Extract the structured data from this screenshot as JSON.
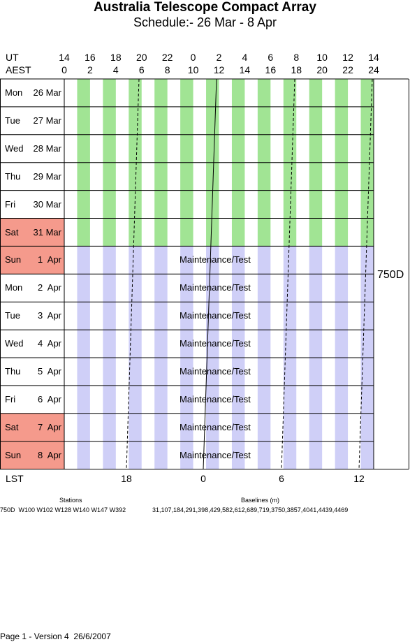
{
  "title": "Australia Telescope Compact Array",
  "subtitle": "Schedule:- 26 Mar - 8  Apr",
  "header": {
    "ut_label": "UT",
    "aest_label": "AEST",
    "ut_ticks": [
      "14",
      "16",
      "18",
      "20",
      "22",
      "0",
      "2",
      "4",
      "6",
      "8",
      "10",
      "12",
      "14"
    ],
    "aest_ticks": [
      "0",
      "2",
      "4",
      "6",
      "8",
      "10",
      "12",
      "14",
      "16",
      "18",
      "20",
      "22",
      "24"
    ]
  },
  "days": [
    {
      "weekday": "Mon",
      "date": "26 Mar",
      "weekend": false,
      "activity": ""
    },
    {
      "weekday": "Tue",
      "date": "27 Mar",
      "weekend": false,
      "activity": ""
    },
    {
      "weekday": "Wed",
      "date": "28 Mar",
      "weekend": false,
      "activity": ""
    },
    {
      "weekday": "Thu",
      "date": "29 Mar",
      "weekend": false,
      "activity": ""
    },
    {
      "weekday": "Fri",
      "date": "30 Mar",
      "weekend": false,
      "activity": ""
    },
    {
      "weekday": "Sat",
      "date": "31 Mar",
      "weekend": true,
      "activity": ""
    },
    {
      "weekday": "Sun",
      "date": "1  Apr",
      "weekend": true,
      "activity": "Maintenance/Test"
    },
    {
      "weekday": "Mon",
      "date": "2  Apr",
      "weekend": false,
      "activity": "Maintenance/Test"
    },
    {
      "weekday": "Tue",
      "date": "3  Apr",
      "weekend": false,
      "activity": "Maintenance/Test"
    },
    {
      "weekday": "Wed",
      "date": "4  Apr",
      "weekend": false,
      "activity": "Maintenance/Test"
    },
    {
      "weekday": "Thu",
      "date": "5  Apr",
      "weekend": false,
      "activity": "Maintenance/Test"
    },
    {
      "weekday": "Fri",
      "date": "6  Apr",
      "weekend": false,
      "activity": "Maintenance/Test"
    },
    {
      "weekday": "Sat",
      "date": "7  Apr",
      "weekend": true,
      "activity": "Maintenance/Test"
    },
    {
      "weekday": "Sun",
      "date": "8  Apr",
      "weekend": true,
      "activity": "Maintenance/Test"
    }
  ],
  "config_label": "750D",
  "lst": {
    "label": "LST",
    "ticks": [
      "18",
      "0",
      "6",
      "12"
    ]
  },
  "stations": {
    "heading": "Stations",
    "value": "750D  W100 W102 W128 W140 W147 W392"
  },
  "baselines": {
    "heading": "Baselines (m)",
    "value": "31,107,184,291,398,429,582,612,689,719,3750,3857,4041,4439,4469"
  },
  "footer": "Page 1 - Version 4  26/6/2007",
  "colors": {
    "weekend": "#f59a8c",
    "band_green": "#a1e494",
    "band_lavender": "#cfcff7",
    "grid": "#000000"
  }
}
